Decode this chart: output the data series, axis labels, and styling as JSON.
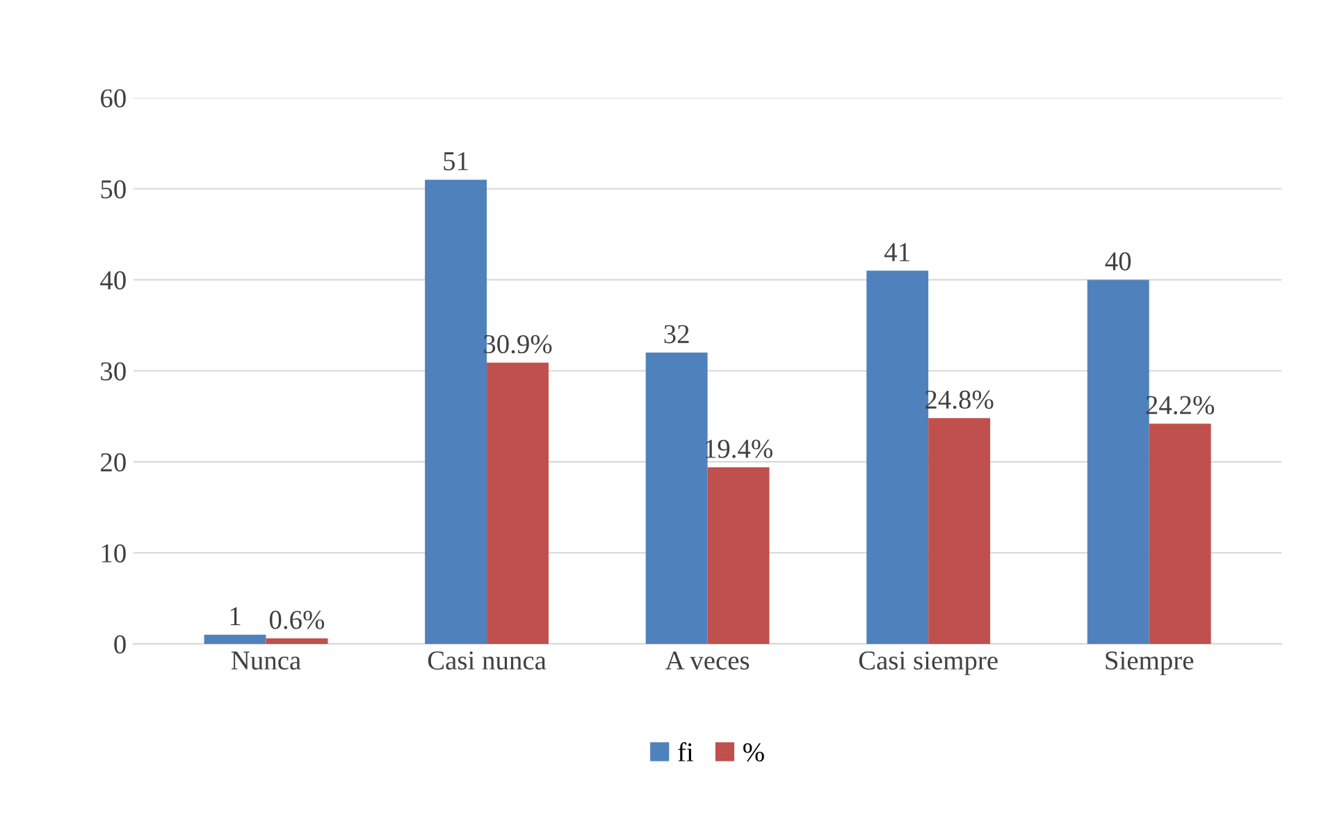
{
  "chart_data": {
    "type": "bar",
    "categories": [
      "Nunca",
      "Casi nunca",
      "A veces",
      "Casi siempre",
      "Siempre"
    ],
    "series": [
      {
        "name": "fi",
        "color": "#4f81bd",
        "values": [
          1,
          51,
          32,
          41,
          40
        ],
        "value_labels": [
          "1",
          "51",
          "32",
          "41",
          "40"
        ]
      },
      {
        "name": "%",
        "color": "#c0504d",
        "values": [
          0.6,
          30.9,
          19.4,
          24.8,
          24.2
        ],
        "value_labels": [
          "0.6%",
          "30.9%",
          "19.4%",
          "24.8%",
          "24.2%"
        ]
      }
    ],
    "ylim": [
      0,
      60
    ],
    "yticks": [
      0,
      10,
      20,
      30,
      40,
      50,
      60
    ],
    "grid": "y",
    "legend": "bottom"
  }
}
